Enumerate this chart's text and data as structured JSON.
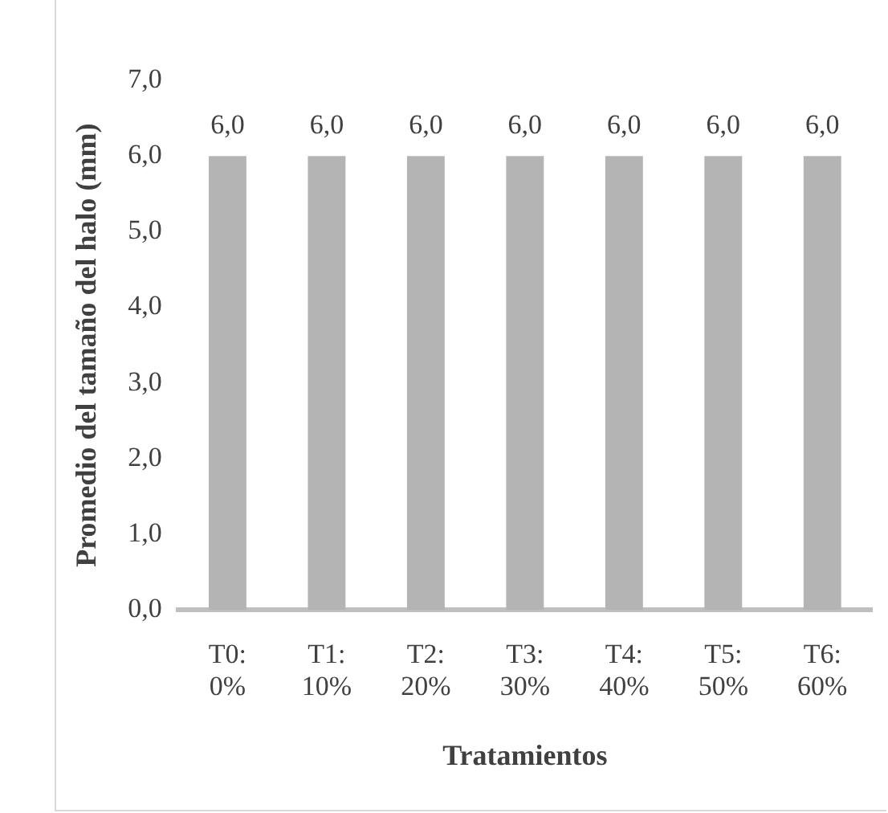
{
  "chart_data": {
    "type": "bar",
    "ylabel": "Promedio del tamaño del halo (mm)",
    "xlabel": "Tratamientos",
    "categories": [
      "T0: 0%",
      "T1: 10%",
      "T2: 20%",
      "T3: 30%",
      "T4: 40%",
      "T5: 50%",
      "T6: 60%"
    ],
    "values": [
      6,
      6,
      6,
      6,
      6,
      6,
      6
    ],
    "color": "#b4b4b4",
    "value_labels": [
      "6,0",
      "6,0",
      "6,0",
      "6,0",
      "6,0",
      "6,0",
      "6,0"
    ],
    "ylim": [
      0,
      7
    ],
    "yticks": [
      {
        "value": 0,
        "label": "0,0"
      },
      {
        "value": 1,
        "label": "1,0"
      },
      {
        "value": 2,
        "label": "2,0"
      },
      {
        "value": 3,
        "label": "3,0"
      },
      {
        "value": 4,
        "label": "4,0"
      },
      {
        "value": 5,
        "label": "5,0"
      },
      {
        "value": 6,
        "label": "6,0"
      },
      {
        "value": 7,
        "label": "7,0"
      }
    ],
    "grid": false,
    "legend": false
  }
}
